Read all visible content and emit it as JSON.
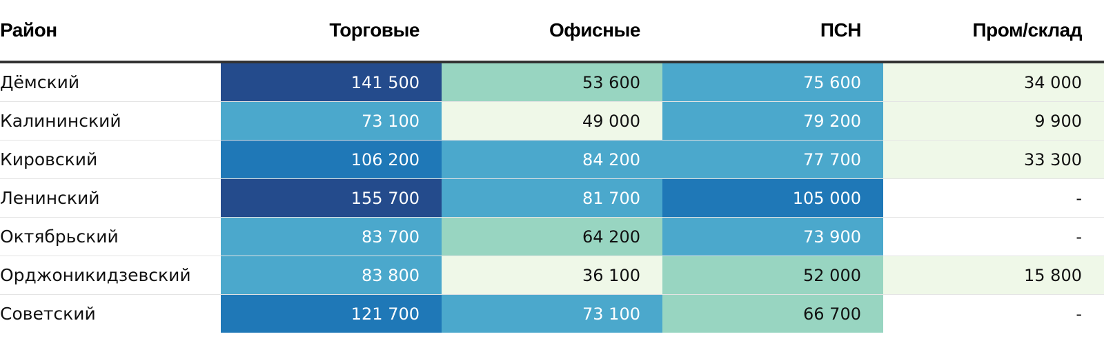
{
  "chart_data": {
    "type": "table",
    "columns": [
      "Район",
      "Торговые",
      "Офисные",
      "ПСН",
      "Пром/склад"
    ],
    "rows": [
      {
        "name": "Дёмский",
        "values": [
          "141 500",
          "53 600",
          "75 600",
          "34 000"
        ],
        "numeric": [
          141500,
          53600,
          75600,
          34000
        ]
      },
      {
        "name": "Калининский",
        "values": [
          "73 100",
          "49 000",
          "79 200",
          "9 900"
        ],
        "numeric": [
          73100,
          49000,
          79200,
          9900
        ]
      },
      {
        "name": "Кировский",
        "values": [
          "106 200",
          "84 200",
          "77 700",
          "33 300"
        ],
        "numeric": [
          106200,
          84200,
          77700,
          33300
        ]
      },
      {
        "name": "Ленинский",
        "values": [
          "155 700",
          "81 700",
          "105 000",
          "-"
        ],
        "numeric": [
          155700,
          81700,
          105000,
          null
        ]
      },
      {
        "name": "Октябрьский",
        "values": [
          "83 700",
          "64 200",
          "73 900",
          "-"
        ],
        "numeric": [
          83700,
          64200,
          73900,
          null
        ]
      },
      {
        "name": "Орджоникидзевский",
        "values": [
          "83 800",
          "36 100",
          "52 000",
          "15 800"
        ],
        "numeric": [
          83800,
          36100,
          52000,
          15800
        ]
      },
      {
        "name": "Советский",
        "values": [
          "121 700",
          "73 100",
          "66 700",
          "-"
        ],
        "numeric": [
          121700,
          73100,
          66700,
          null
        ]
      }
    ],
    "color_scale": [
      {
        "min": 0,
        "max": 50000,
        "bg": "#eff8e8",
        "fg": "#111111"
      },
      {
        "min": 50000,
        "max": 70000,
        "bg": "#98d5c1",
        "fg": "#111111"
      },
      {
        "min": 70000,
        "max": 90000,
        "bg": "#4ba8cc",
        "fg": "#ffffff"
      },
      {
        "min": 90000,
        "max": 140000,
        "bg": "#1f78b7",
        "fg": "#ffffff"
      },
      {
        "min": 140000,
        "max": 999999,
        "bg": "#244b8c",
        "fg": "#ffffff"
      }
    ],
    "empty_bg": "#ffffff"
  }
}
